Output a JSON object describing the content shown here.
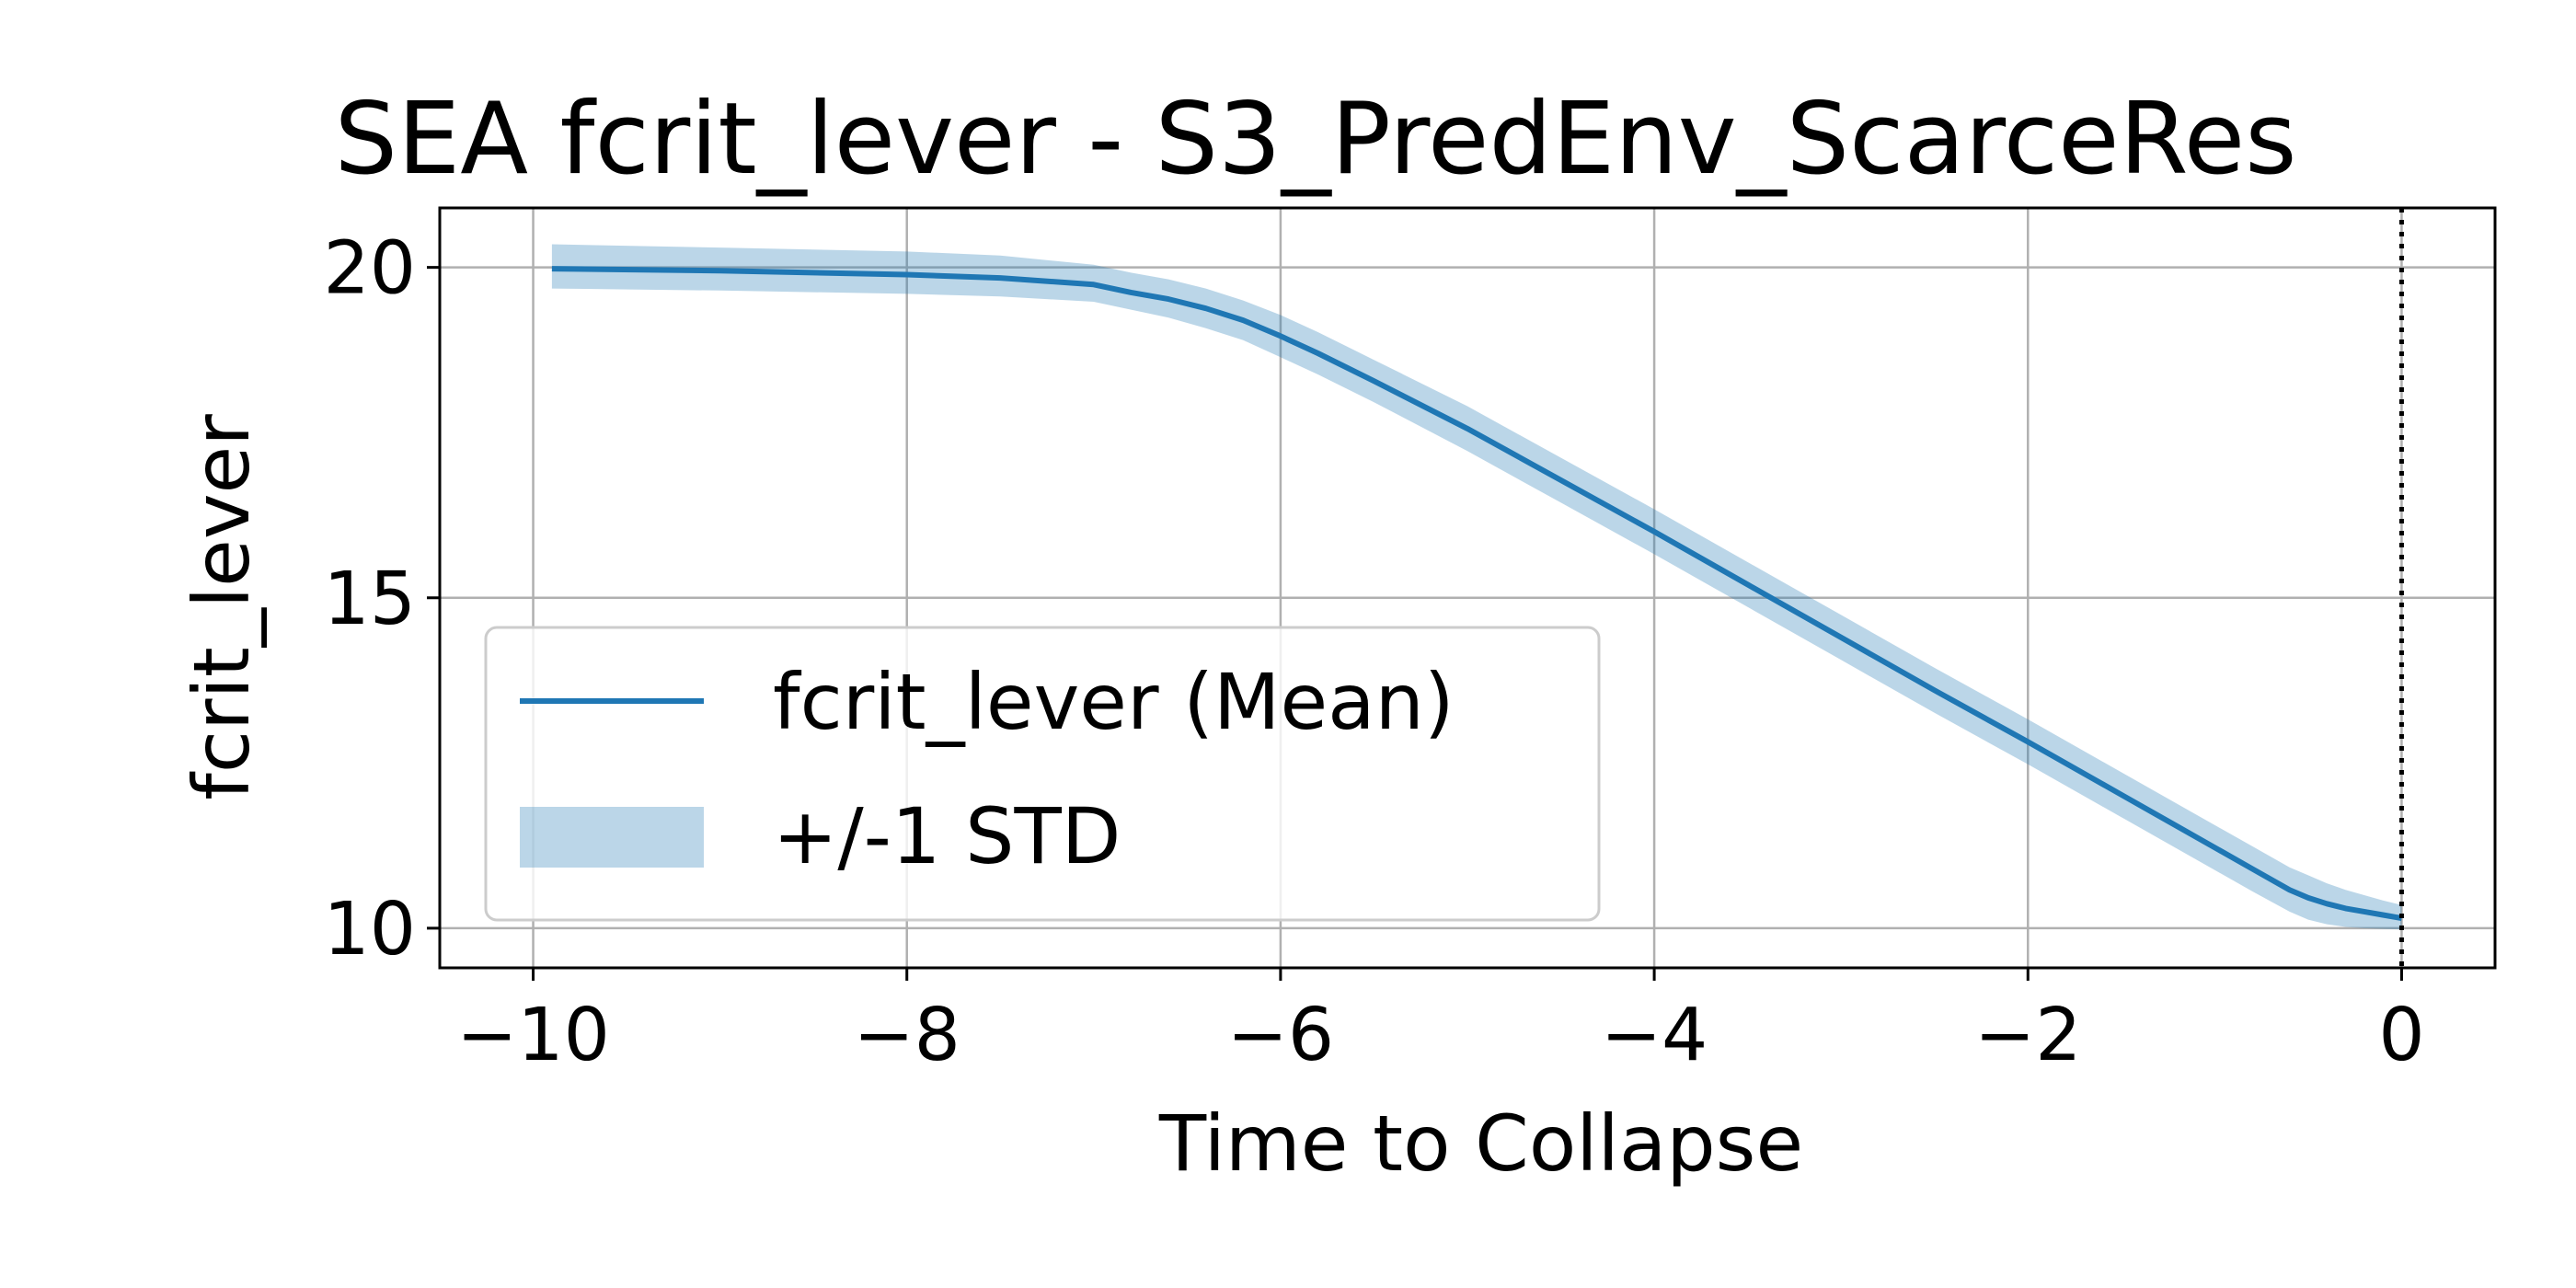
{
  "chart_data": {
    "type": "line",
    "title": "SEA fcrit_lever - S3_PredEnv_ScarceRes",
    "xlabel": "Time to Collapse",
    "ylabel": "fcrit_lever",
    "xlim": [
      -10.5,
      0.5
    ],
    "ylim": [
      9.4,
      20.9
    ],
    "xticks": [
      -10,
      -8,
      -6,
      -4,
      -2,
      0
    ],
    "xtick_labels": [
      "−10",
      "−8",
      "−6",
      "−4",
      "−2",
      "0"
    ],
    "yticks": [
      10,
      15,
      20
    ],
    "ytick_labels": [
      "10",
      "15",
      "20"
    ],
    "grid": true,
    "legend_position": "lower-left",
    "vline": {
      "x": 0,
      "style": "dotted",
      "color": "#000000"
    },
    "colors": {
      "mean": "#1f77b4",
      "band": "#1f77b4",
      "band_opacity": 0.3
    },
    "series": [
      {
        "name": "fcrit_lever (Mean)",
        "kind": "line",
        "x": [
          -9.9,
          -9.0,
          -8.0,
          -7.5,
          -7.0,
          -6.8,
          -6.6,
          -6.4,
          -6.2,
          -6.0,
          -5.8,
          -5.5,
          -5.0,
          -4.5,
          -4.0,
          -3.5,
          -3.0,
          -2.5,
          -2.0,
          -1.5,
          -1.0,
          -0.8,
          -0.6,
          -0.5,
          -0.4,
          -0.3,
          -0.2,
          -0.1,
          0.0
        ],
        "y": [
          19.98,
          19.95,
          19.89,
          19.84,
          19.74,
          19.62,
          19.52,
          19.38,
          19.2,
          18.96,
          18.7,
          18.28,
          17.56,
          16.78,
          16.0,
          15.2,
          14.4,
          13.6,
          12.82,
          12.02,
          11.22,
          10.9,
          10.58,
          10.46,
          10.37,
          10.3,
          10.25,
          10.2,
          10.15
        ]
      },
      {
        "name": "+/-1 STD",
        "kind": "band",
        "x": [
          -9.9,
          -9.0,
          -8.0,
          -7.5,
          -7.0,
          -6.8,
          -6.6,
          -6.4,
          -6.2,
          -6.0,
          -5.8,
          -5.5,
          -5.0,
          -4.5,
          -4.0,
          -3.5,
          -3.0,
          -2.5,
          -2.0,
          -1.5,
          -1.0,
          -0.8,
          -0.6,
          -0.5,
          -0.4,
          -0.3,
          -0.2,
          -0.1,
          0.0
        ],
        "lower": [
          19.68,
          19.65,
          19.6,
          19.56,
          19.48,
          19.36,
          19.24,
          19.08,
          18.9,
          18.64,
          18.38,
          17.96,
          17.22,
          16.44,
          15.66,
          14.86,
          14.06,
          13.26,
          12.48,
          11.68,
          10.88,
          10.56,
          10.25,
          10.13,
          10.06,
          10.02,
          10.0,
          9.99,
          9.98
        ],
        "upper": [
          20.35,
          20.3,
          20.24,
          20.18,
          20.04,
          19.92,
          19.82,
          19.68,
          19.5,
          19.28,
          19.02,
          18.6,
          17.9,
          17.12,
          16.34,
          15.54,
          14.74,
          13.94,
          13.16,
          12.36,
          11.56,
          11.24,
          10.92,
          10.8,
          10.68,
          10.58,
          10.5,
          10.42,
          10.35
        ]
      }
    ]
  }
}
